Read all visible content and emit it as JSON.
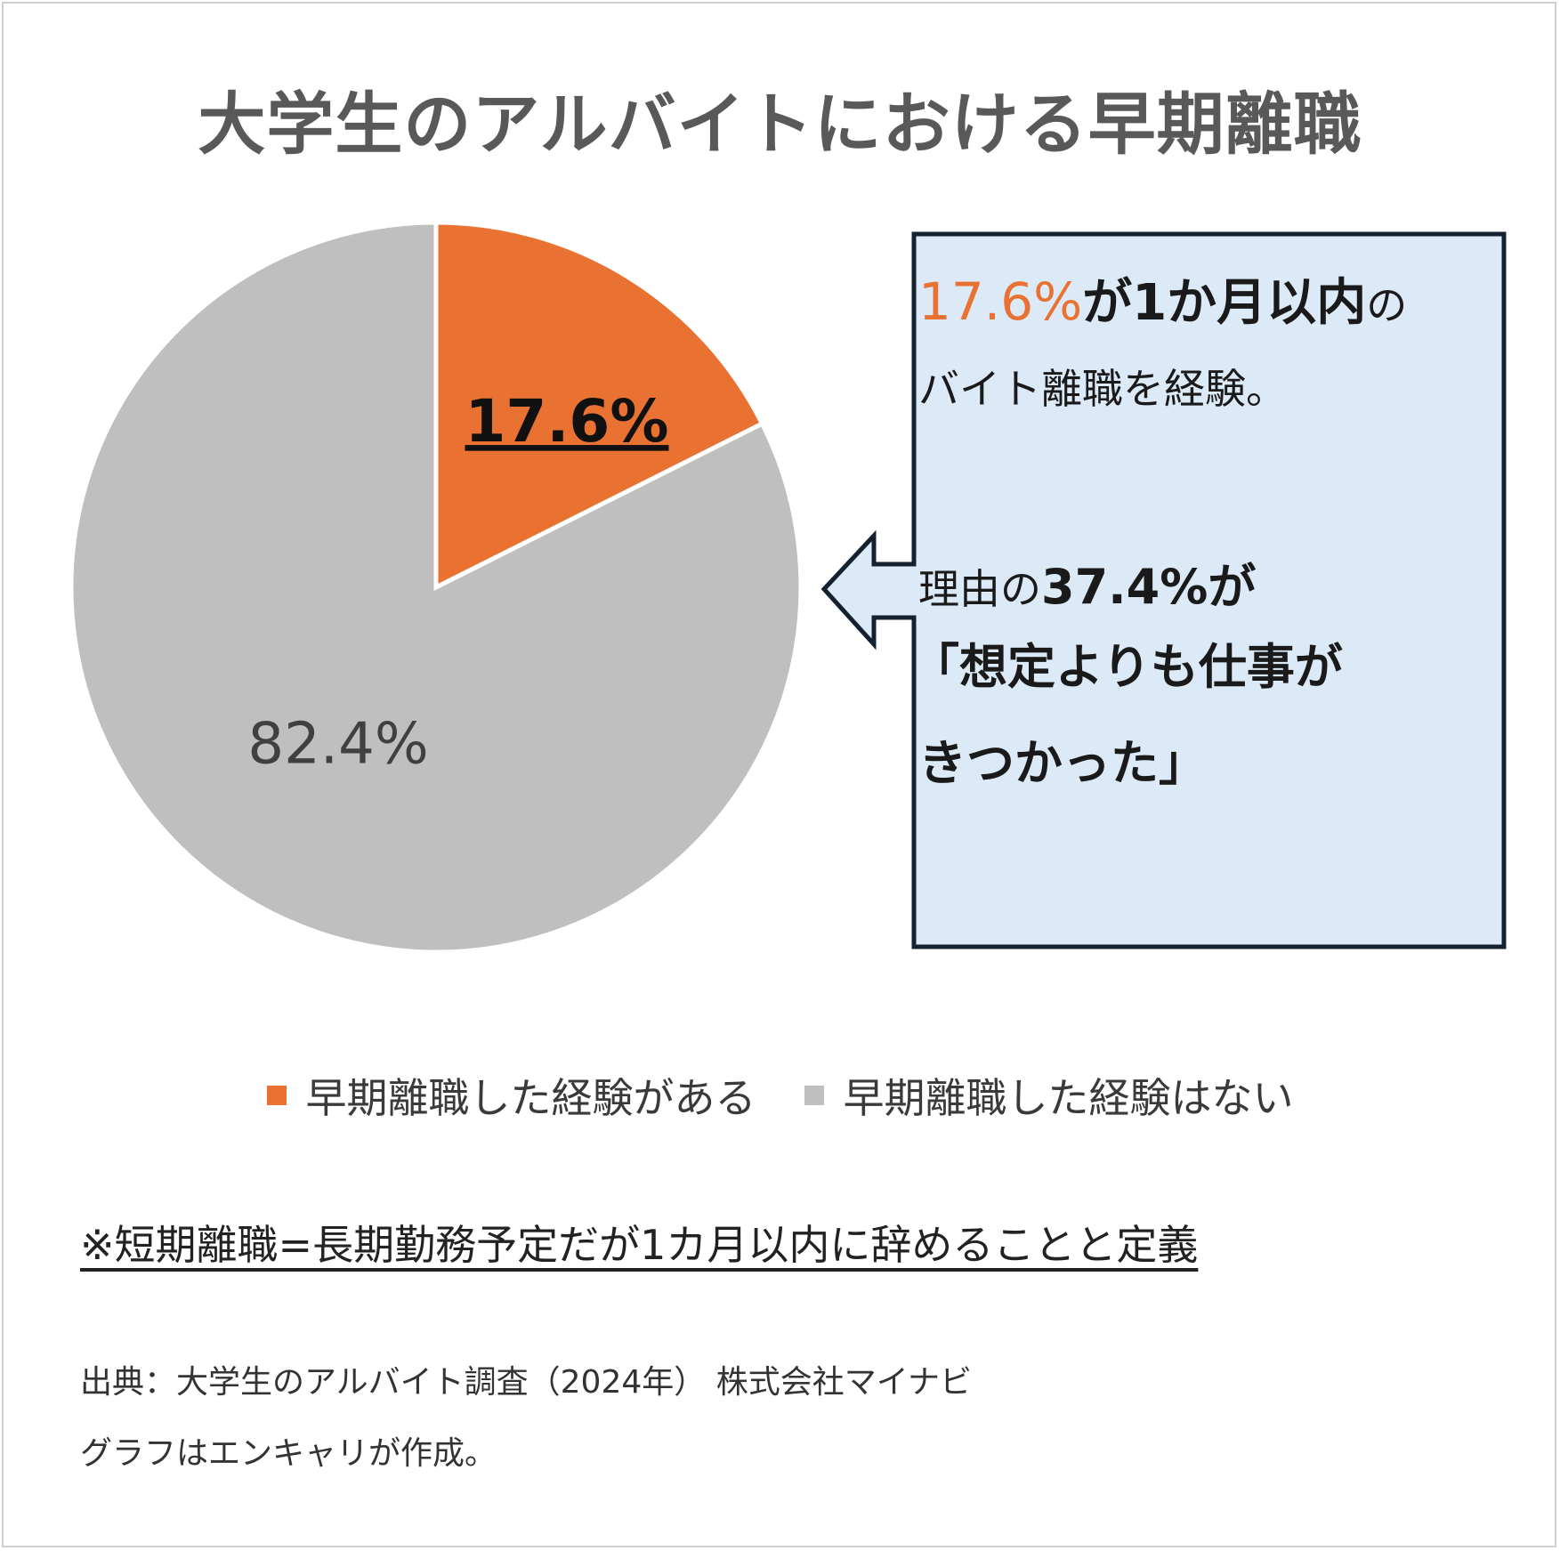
{
  "chart_data": {
    "type": "pie",
    "title": "大学生のアルバイトにおける早期離職",
    "categories": [
      "早期離職した経験がある",
      "早期離職した経験はない"
    ],
    "values": [
      17.6,
      82.4
    ],
    "data_labels": [
      "17.6%",
      "82.4%"
    ],
    "colors": [
      "#e97132",
      "#bfbfbf"
    ],
    "legend_position": "bottom"
  },
  "callout": {
    "line1_pct": "17.6%",
    "line1_bold": "が1か月以内",
    "line1_tail": "の",
    "line2": "バイト離職を経験。",
    "line3_head": "理由の",
    "line3_pct": "37.4%が",
    "line4": "「想定よりも仕事が",
    "line5": "きつかった」"
  },
  "note": "※短期離職=長期勤務予定だが1カ月以内に辞めることと定義",
  "source": {
    "line1": "出典：大学生のアルバイト調査（2024年） 株式会社マイナビ",
    "line2": "グラフはエンキャリが作成。"
  }
}
